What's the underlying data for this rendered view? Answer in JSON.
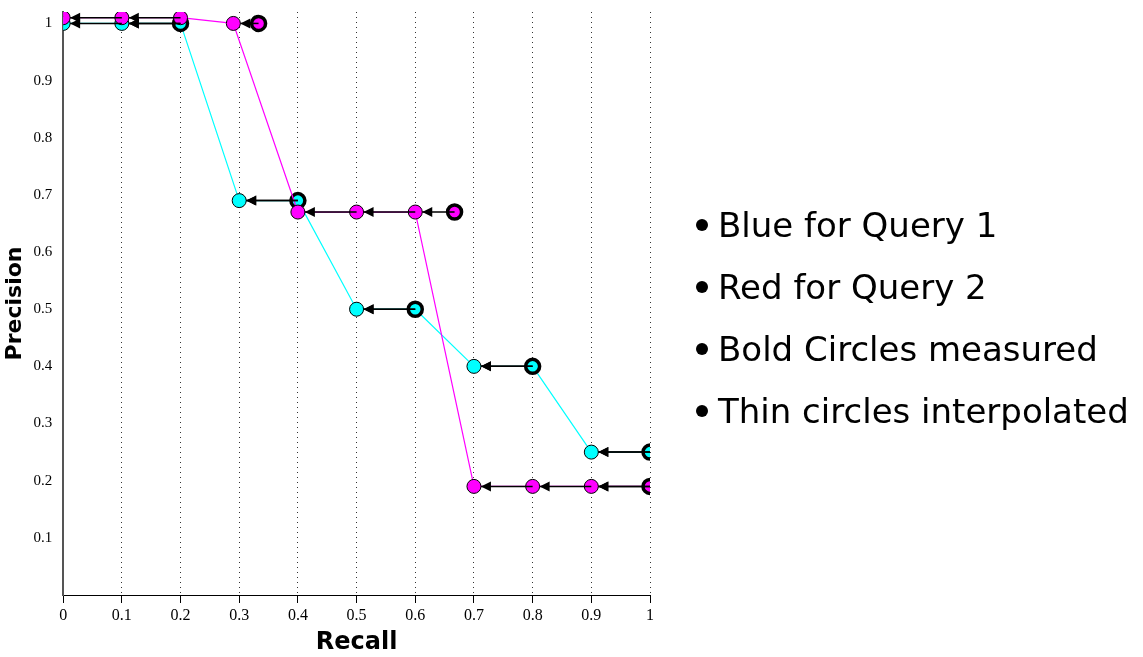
{
  "chart_data": {
    "type": "line",
    "xlabel": "Recall",
    "ylabel": "Precision",
    "xlim": [
      0,
      1
    ],
    "xticks": [
      0,
      0.1,
      0.2,
      0.3,
      0.4,
      0.5,
      0.6,
      0.7,
      0.8,
      0.9,
      1
    ],
    "ylim": [
      0,
      1.02
    ],
    "yticks": [
      0.1,
      0.2,
      0.3,
      0.4,
      0.5,
      0.6,
      0.7,
      0.8,
      0.9,
      1
    ],
    "grid": "x",
    "legend": false,
    "marker": "circle",
    "series": [
      {
        "color": "#00ffff",
        "x": [
          0,
          0.1,
          0.2,
          0.3,
          0.4,
          0.5,
          0.6,
          0.7,
          0.8,
          0.9,
          1
        ],
        "values": [
          1,
          1,
          1,
          0.69,
          0.69,
          0.5,
          0.5,
          0.4,
          0.4,
          0.25,
          0.25
        ]
      },
      {
        "type": "scatter",
        "color": "#00ffff",
        "x": [
          0.2,
          0.4,
          0.6,
          0.8,
          1
        ],
        "values": [
          1,
          0.69,
          0.5,
          0.4,
          0.25
        ]
      },
      {
        "color": "#ff00ff",
        "x": [
          0,
          0.1,
          0.2,
          0.29,
          0.4,
          0.5,
          0.6,
          0.7,
          0.8,
          0.9,
          1
        ],
        "values": [
          1.01,
          1.01,
          1.01,
          1,
          0.67,
          0.67,
          0.67,
          0.19,
          0.19,
          0.19,
          0.19
        ]
      },
      {
        "type": "scatter",
        "color": "#ff00ff",
        "x": [
          0.333,
          0.667,
          1
        ],
        "values": [
          1,
          0.67,
          0.19
        ]
      }
    ],
    "annotations": [
      "Blue for Query 1",
      "Red for Query 2",
      "Bold Circles measured",
      "Thin circles interpolated"
    ]
  }
}
